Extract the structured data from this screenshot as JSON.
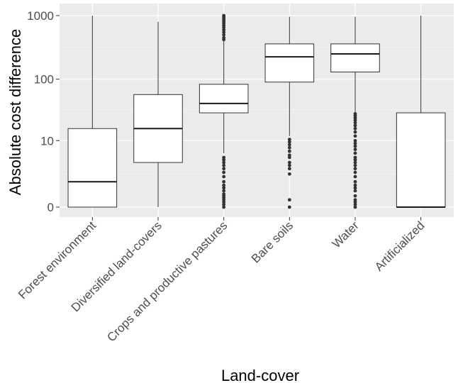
{
  "chart_data": {
    "type": "boxplot",
    "title": "",
    "xlabel": "Land-cover",
    "ylabel": "Absolute cost difference",
    "y_scale": "pseudo-log10",
    "ylim": [
      0,
      1000
    ],
    "y_ticks": [
      {
        "value": 0,
        "label": "0"
      },
      {
        "value": 10,
        "label": "10"
      },
      {
        "value": 100,
        "label": "100"
      },
      {
        "value": 1000,
        "label": "1000"
      }
    ],
    "grid": true,
    "legend": "none",
    "colors": {
      "panel_bg": "#ebebeb",
      "grid": "#ffffff",
      "box_fill": "#ffffff",
      "line": "#333333"
    },
    "categories": [
      "Forest environment",
      "Diversified land-covers",
      "Crops and productive pastures",
      "Bare soils",
      "Water",
      "Artificialized"
    ],
    "boxes": [
      {
        "category": "Forest environment",
        "whisker_low": 0,
        "q1": 0,
        "median": 1.5,
        "q3": 16,
        "whisker_high": 1000,
        "outliers": []
      },
      {
        "category": "Diversified land-covers",
        "whisker_low": 0,
        "q1": 4,
        "median": 16,
        "q3": 57,
        "whisker_high": 800,
        "outliers": []
      },
      {
        "category": "Crops and productive pastures",
        "whisker_low": 6,
        "q1": 29,
        "median": 41,
        "q3": 83,
        "whisker_high": 400,
        "outliers": [
          0,
          0.1,
          0.2,
          0.3,
          0.4,
          0.5,
          0.6,
          0.8,
          1,
          1.2,
          1.5,
          2,
          2.5,
          3,
          3.5,
          4,
          4.5,
          5,
          420,
          450,
          500,
          550,
          600,
          650,
          700,
          750,
          800,
          850,
          900,
          950,
          1000
        ]
      },
      {
        "category": "Bare soils",
        "whisker_low": 12,
        "q1": 90,
        "median": 225,
        "q3": 360,
        "whisker_high": 960,
        "outliers": [
          0,
          0.3,
          2.3,
          3,
          3.5,
          4,
          5,
          5.5,
          6.5,
          7.5,
          8.5,
          9.5,
          10.5
        ]
      },
      {
        "category": "Water",
        "whisker_low": 30,
        "q1": 130,
        "median": 250,
        "q3": 360,
        "whisker_high": 960,
        "outliers": [
          0,
          0.1,
          0.2,
          0.3,
          0.5,
          0.8,
          1,
          1.2,
          1.5,
          2,
          2.5,
          3,
          3.5,
          4,
          4.5,
          5,
          6,
          7,
          8,
          9,
          10,
          12,
          14,
          16,
          18,
          20,
          22,
          24,
          26,
          28
        ]
      },
      {
        "category": "Artificialized",
        "whisker_low": 0,
        "q1": 0,
        "median": 0,
        "q3": 29,
        "whisker_high": 1000,
        "outliers": []
      }
    ]
  }
}
